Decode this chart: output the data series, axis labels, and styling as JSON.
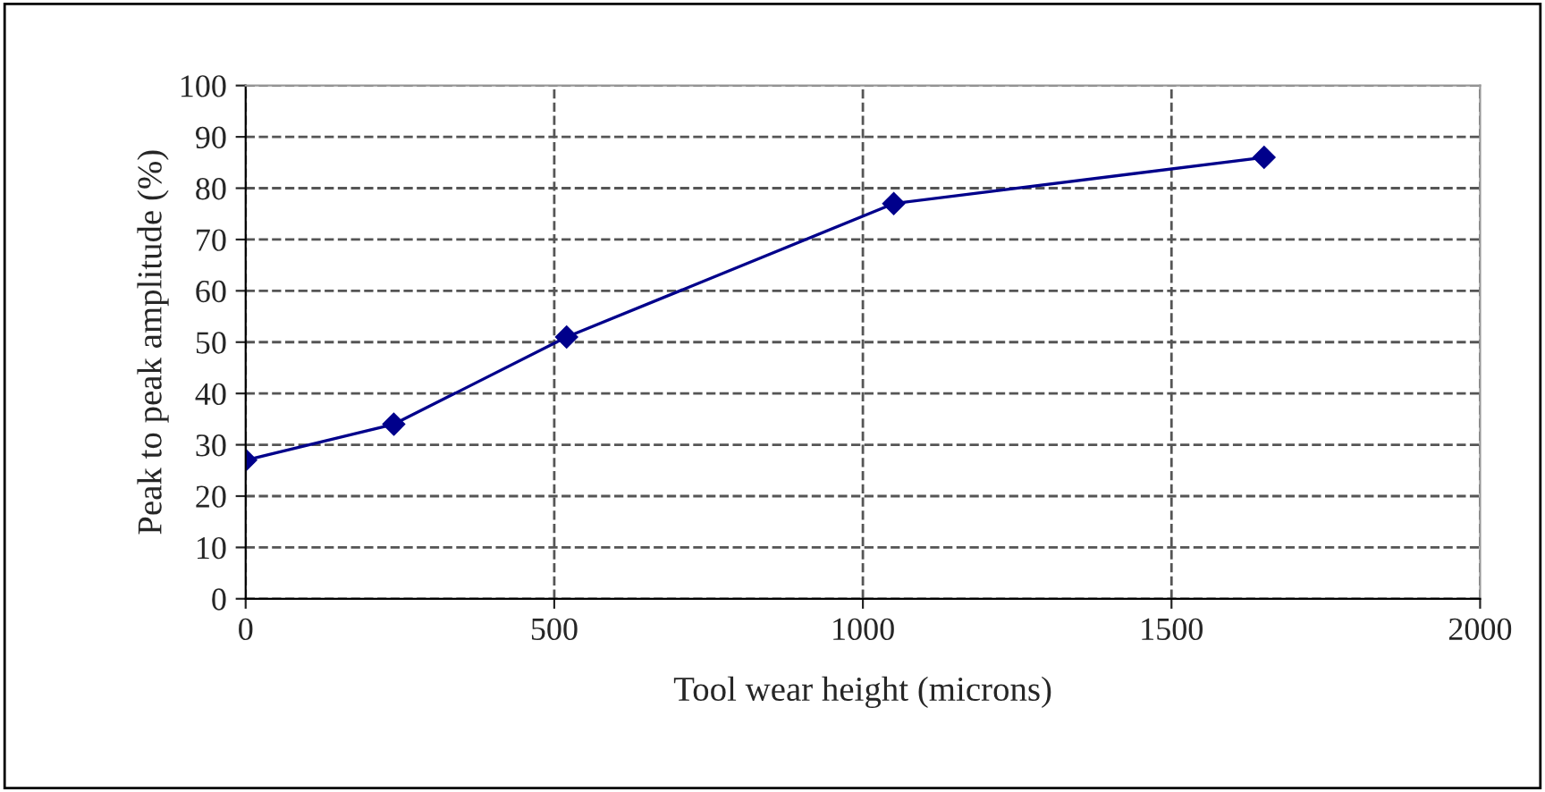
{
  "chart_data": {
    "type": "line",
    "xlabel": "Tool wear height (microns)",
    "ylabel": "Peak to peak amplitude (%)",
    "x": [
      0,
      240,
      520,
      1050,
      1650
    ],
    "series": [
      {
        "color": "#00008b",
        "values": [
          27,
          34,
          51,
          77,
          86
        ]
      }
    ],
    "xlim": [
      0,
      2000
    ],
    "xticks": [
      0,
      500,
      1000,
      1500,
      2000
    ],
    "ylim": [
      0,
      100
    ],
    "yticks": [
      0,
      10,
      20,
      30,
      40,
      50,
      60,
      70,
      80,
      90,
      100
    ],
    "grid": true,
    "marker": "diamond",
    "line_style": "solid"
  }
}
